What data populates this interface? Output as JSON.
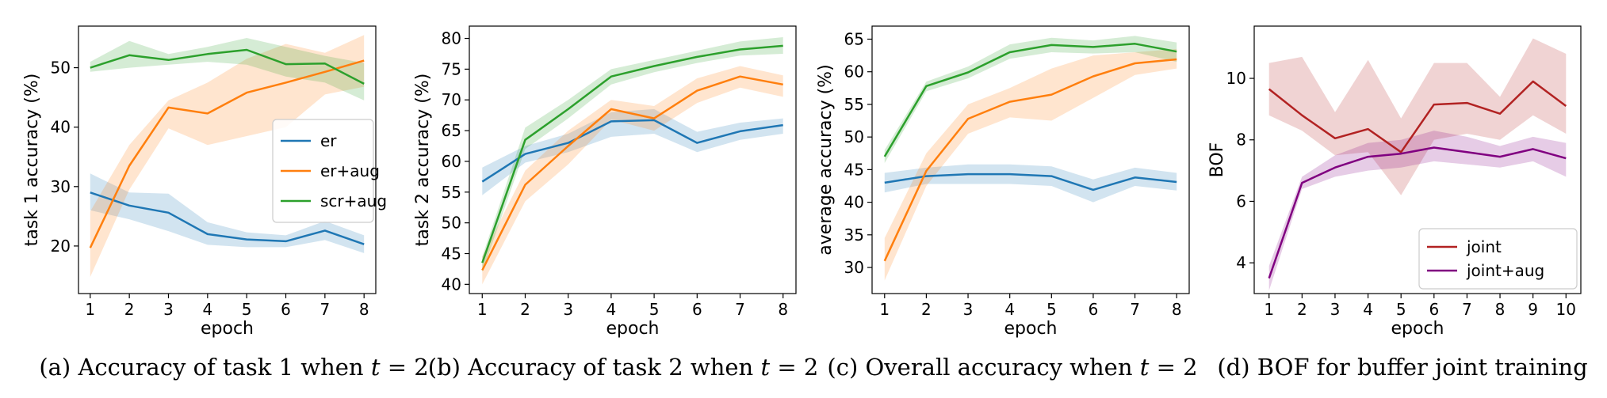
{
  "chart_data": [
    {
      "type": "line",
      "caption_prefix": "(a) Accuracy of task 1 when ",
      "caption_var": "t",
      "caption_suffix": " = 2",
      "xlabel": "epoch",
      "ylabel": "task 1 accuracy (%)",
      "xlim": [
        0.7,
        8.3
      ],
      "ylim": [
        12,
        57
      ],
      "xticks": [
        1,
        2,
        3,
        4,
        5,
        6,
        7,
        8
      ],
      "yticks": [
        20,
        30,
        40,
        50
      ],
      "grid": false,
      "legend_position": "center-right",
      "x": [
        1,
        2,
        3,
        4,
        5,
        6,
        7,
        8
      ],
      "series": [
        {
          "name": "er",
          "color": "#1f77b4",
          "values": [
            29.0,
            26.8,
            25.6,
            22.0,
            21.1,
            20.8,
            22.6,
            20.3
          ],
          "lower": [
            26.0,
            24.5,
            22.5,
            20.2,
            19.8,
            19.8,
            21.0,
            18.8
          ],
          "upper": [
            32.2,
            29.0,
            28.8,
            24.0,
            22.3,
            21.8,
            24.2,
            21.8
          ]
        },
        {
          "name": "er+aug",
          "color": "#ff7f0e",
          "values": [
            19.7,
            33.5,
            43.3,
            42.3,
            45.8,
            47.5,
            49.3,
            51.2
          ],
          "lower": [
            14.8,
            29.5,
            39.8,
            37.0,
            38.5,
            40.0,
            45.5,
            46.8
          ],
          "upper": [
            25.8,
            37.0,
            44.5,
            47.5,
            51.5,
            54.0,
            52.5,
            55.5
          ]
        },
        {
          "name": "scr+aug",
          "color": "#2ca02c",
          "values": [
            50.0,
            52.1,
            51.3,
            52.3,
            53.0,
            50.6,
            50.7,
            47.3
          ],
          "lower": [
            49.3,
            50.0,
            50.5,
            51.0,
            50.5,
            48.5,
            47.5,
            44.5
          ],
          "upper": [
            51.0,
            54.5,
            52.3,
            53.5,
            55.0,
            53.5,
            52.0,
            50.8
          ]
        }
      ]
    },
    {
      "type": "line",
      "caption_prefix": "(b) Accuracy of task 2 when ",
      "caption_var": "t",
      "caption_suffix": " = 2",
      "xlabel": "epoch",
      "ylabel": "task 2 accuracy (%)",
      "xlim": [
        0.7,
        8.3
      ],
      "ylim": [
        38.5,
        82
      ],
      "xticks": [
        1,
        2,
        3,
        4,
        5,
        6,
        7,
        8
      ],
      "yticks": [
        40,
        45,
        50,
        55,
        60,
        65,
        70,
        75,
        80
      ],
      "grid": false,
      "x": [
        1,
        2,
        3,
        4,
        5,
        6,
        7,
        8
      ],
      "series": [
        {
          "name": "er",
          "color": "#1f77b4",
          "values": [
            56.7,
            61.2,
            63.0,
            66.5,
            66.7,
            63.0,
            64.9,
            65.9
          ],
          "lower": [
            54.5,
            59.8,
            61.5,
            64.0,
            64.5,
            61.5,
            63.5,
            64.5
          ],
          "upper": [
            59.0,
            62.5,
            64.5,
            68.0,
            68.5,
            64.8,
            66.3,
            67.0
          ]
        },
        {
          "name": "er+aug",
          "color": "#ff7f0e",
          "values": [
            42.3,
            56.2,
            62.5,
            68.5,
            67.0,
            71.5,
            73.8,
            72.5
          ],
          "lower": [
            40.0,
            53.5,
            59.5,
            66.8,
            65.0,
            69.5,
            72.0,
            70.5
          ],
          "upper": [
            44.5,
            58.5,
            65.0,
            70.0,
            69.0,
            73.5,
            75.5,
            74.0
          ]
        },
        {
          "name": "scr+aug",
          "color": "#2ca02c",
          "values": [
            43.5,
            63.5,
            68.5,
            73.8,
            75.5,
            77.0,
            78.2,
            78.8
          ],
          "lower": [
            42.0,
            62.0,
            67.0,
            72.5,
            74.5,
            76.0,
            77.2,
            77.5
          ],
          "upper": [
            44.5,
            65.5,
            70.0,
            75.0,
            76.5,
            78.0,
            79.5,
            80.2
          ]
        }
      ]
    },
    {
      "type": "line",
      "caption_prefix": "(c) Overall accuracy when ",
      "caption_var": "t",
      "caption_suffix": " = 2",
      "xlabel": "epoch",
      "ylabel": "average accuracy (%)",
      "xlim": [
        0.7,
        8.3
      ],
      "ylim": [
        26,
        67
      ],
      "xticks": [
        1,
        2,
        3,
        4,
        5,
        6,
        7,
        8
      ],
      "yticks": [
        30,
        35,
        40,
        45,
        50,
        55,
        60,
        65
      ],
      "grid": false,
      "x": [
        1,
        2,
        3,
        4,
        5,
        6,
        7,
        8
      ],
      "series": [
        {
          "name": "er",
          "color": "#1f77b4",
          "values": [
            43.0,
            44.0,
            44.3,
            44.3,
            44.0,
            41.9,
            43.8,
            43.1
          ],
          "lower": [
            41.5,
            42.8,
            42.8,
            42.8,
            42.5,
            40.0,
            42.5,
            41.8
          ],
          "upper": [
            44.5,
            45.3,
            45.8,
            45.8,
            45.5,
            43.5,
            45.3,
            44.5
          ]
        },
        {
          "name": "er+aug",
          "color": "#ff7f0e",
          "values": [
            31.0,
            44.8,
            52.8,
            55.4,
            56.5,
            59.3,
            61.3,
            61.9
          ],
          "lower": [
            28.0,
            42.5,
            50.5,
            53.0,
            52.5,
            56.0,
            59.5,
            60.5
          ],
          "upper": [
            34.5,
            47.5,
            55.0,
            57.5,
            60.5,
            62.5,
            63.0,
            63.5
          ]
        },
        {
          "name": "scr+aug",
          "color": "#2ca02c",
          "values": [
            47.0,
            57.8,
            59.9,
            63.0,
            64.1,
            63.8,
            64.3,
            63.1
          ],
          "lower": [
            46.0,
            57.0,
            59.0,
            62.0,
            63.0,
            62.8,
            63.0,
            61.5
          ],
          "upper": [
            48.0,
            58.5,
            60.8,
            64.2,
            65.2,
            64.8,
            65.5,
            64.5
          ]
        }
      ]
    },
    {
      "type": "line",
      "caption_prefix": "(d) BOF for buffer joint training",
      "caption_var": "",
      "caption_suffix": "",
      "xlabel": "epoch",
      "ylabel": "BOF",
      "xlim": [
        0.55,
        10.45
      ],
      "ylim": [
        3.0,
        11.7
      ],
      "xticks": [
        1,
        2,
        3,
        4,
        5,
        6,
        7,
        8,
        9,
        10
      ],
      "yticks": [
        4,
        6,
        8,
        10
      ],
      "grid": false,
      "legend_position": "lower-right",
      "x": [
        1,
        2,
        3,
        4,
        5,
        6,
        7,
        8,
        9,
        10
      ],
      "series": [
        {
          "name": "joint",
          "color": "#b22222",
          "values": [
            9.65,
            8.8,
            8.05,
            8.35,
            7.6,
            9.15,
            9.2,
            8.85,
            9.9,
            9.1
          ],
          "lower": [
            8.8,
            8.3,
            7.5,
            7.6,
            6.2,
            8.0,
            8.2,
            8.0,
            8.8,
            8.2
          ],
          "upper": [
            10.5,
            10.7,
            8.9,
            10.6,
            8.7,
            10.5,
            10.5,
            9.4,
            11.3,
            10.8
          ]
        },
        {
          "name": "joint+aug",
          "color": "#800080",
          "values": [
            3.5,
            6.6,
            7.1,
            7.45,
            7.55,
            7.75,
            7.6,
            7.45,
            7.7,
            7.4
          ],
          "lower": [
            3.1,
            6.4,
            6.8,
            7.0,
            7.1,
            7.3,
            7.2,
            7.1,
            7.3,
            6.8
          ],
          "upper": [
            3.9,
            6.8,
            7.5,
            7.9,
            8.0,
            8.3,
            8.1,
            7.8,
            8.1,
            7.9
          ]
        }
      ]
    }
  ]
}
